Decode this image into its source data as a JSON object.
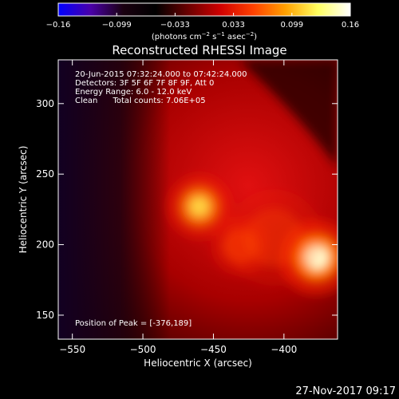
{
  "colorbar": {
    "ticks": [
      "−0.16",
      "−0.099",
      "−0.033",
      "0.033",
      "0.099",
      "0.16"
    ],
    "unit_prefix": "(photons cm",
    "unit_exp1": "−2",
    "unit_mid": " s",
    "unit_exp2": "−1",
    "unit_mid2": " asec",
    "unit_exp3": "−2",
    "unit_suffix": ")",
    "colors": [
      "#0000ff",
      "#4a00a8",
      "#1a0010",
      "#000000",
      "#6a0000",
      "#d00000",
      "#ff4000",
      "#ffa000",
      "#ffff60",
      "#ffffff"
    ]
  },
  "chart_data": {
    "type": "heatmap",
    "title": "Reconstructed RHESSI Image",
    "xlabel": "Heliocentric X (arcsec)",
    "ylabel": "Heliocentric Y (arcsec)",
    "xlim": [
      -560,
      -362
    ],
    "ylim": [
      133,
      331
    ],
    "xticks": [
      {
        "value": -550,
        "label": "−550"
      },
      {
        "value": -500,
        "label": "−500"
      },
      {
        "value": -450,
        "label": "−450"
      },
      {
        "value": -400,
        "label": "−400"
      }
    ],
    "yticks": [
      {
        "value": 150,
        "label": "150"
      },
      {
        "value": 200,
        "label": "200"
      },
      {
        "value": 250,
        "label": "250"
      },
      {
        "value": 300,
        "label": "300"
      }
    ],
    "sources": [
      {
        "x": -377,
        "y": 191,
        "intensity": 1.0,
        "radius": 14
      },
      {
        "x": -460,
        "y": 227,
        "intensity": 0.78,
        "radius": 12
      },
      {
        "x": -431,
        "y": 199,
        "intensity": 0.55,
        "radius": 11
      },
      {
        "x": -407,
        "y": 205,
        "intensity": 0.35,
        "radius": 18
      }
    ],
    "annotations": [
      "20-Jun-2015 07:32:24.000 to 07:42:24.000",
      "Detectors: 3F 5F 6F 7F 8F 9F, Att 0",
      "Energy Range: 6.0 - 12.0 keV",
      "Clean      Total counts: 7.06E+05"
    ],
    "peak_label": "Position of Peak = [-376,189]"
  },
  "footer": {
    "timestamp": "27-Nov-2017 09:17"
  }
}
